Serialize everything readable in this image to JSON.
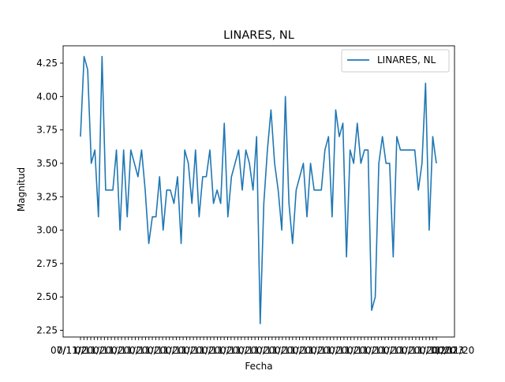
{
  "chart_data": {
    "type": "line",
    "title": "LINARES, NL",
    "xlabel": "Fecha",
    "ylabel": "Magnitud",
    "ylim": [
      2.2,
      4.38
    ],
    "grid": false,
    "legend_position": "top-right",
    "yticks": [
      "2.25",
      "2.50",
      "2.75",
      "3.00",
      "3.25",
      "3.50",
      "3.75",
      "4.00",
      "4.25"
    ],
    "xtick_label_first": "07/11/2",
    "xtick_label_last": "0/2023",
    "x_tick_count": 105,
    "series": [
      {
        "name": "LINARES, NL",
        "color": "#1f77b4",
        "values": [
          3.7,
          4.3,
          4.2,
          3.5,
          3.6,
          3.1,
          4.3,
          3.3,
          3.3,
          3.3,
          3.6,
          3.0,
          3.6,
          3.1,
          3.6,
          3.5,
          3.4,
          3.6,
          3.3,
          2.9,
          3.1,
          3.1,
          3.4,
          3.0,
          3.3,
          3.3,
          3.2,
          3.4,
          2.9,
          3.6,
          3.5,
          3.2,
          3.6,
          3.1,
          3.4,
          3.4,
          3.6,
          3.2,
          3.3,
          3.2,
          3.8,
          3.1,
          3.4,
          3.5,
          3.6,
          3.3,
          3.6,
          3.5,
          3.3,
          3.7,
          2.3,
          3.2,
          3.6,
          3.9,
          3.5,
          3.3,
          3.0,
          4.0,
          3.2,
          2.9,
          3.3,
          3.4,
          3.5,
          3.1,
          3.5,
          3.3,
          3.3,
          3.3,
          3.6,
          3.7,
          3.1,
          3.9,
          3.7,
          3.8,
          2.8,
          3.6,
          3.5,
          3.8,
          3.5,
          3.6,
          3.6,
          2.4,
          2.5,
          3.5,
          3.7,
          3.5,
          3.5,
          2.8,
          3.7,
          3.6,
          3.6,
          3.6,
          3.6,
          3.6,
          3.3,
          3.5,
          4.1,
          3.0,
          3.7,
          3.5
        ]
      }
    ]
  }
}
